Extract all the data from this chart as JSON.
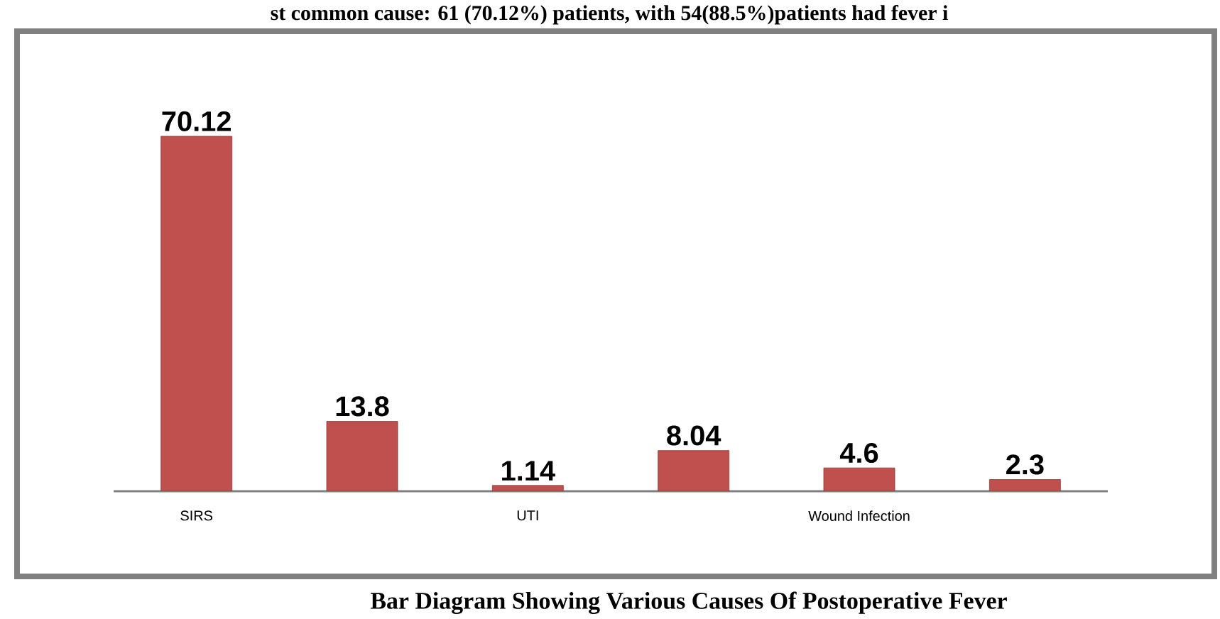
{
  "chart_data": {
    "type": "bar",
    "annotations": [
      "st common cause: 61 (70.12%) patients, with 54(88.5%)patients had fever i",
      "Bar Diagram Showing Various Causes Of Postoperative Fever"
    ],
    "categories": [
      "SIRS",
      null,
      "UTI",
      null,
      "Wound Infection",
      null
    ],
    "values": [
      70.12,
      13.8,
      1.14,
      8.04,
      4.6,
      2.3
    ],
    "color": "#c0504d",
    "data_labels": true
  }
}
